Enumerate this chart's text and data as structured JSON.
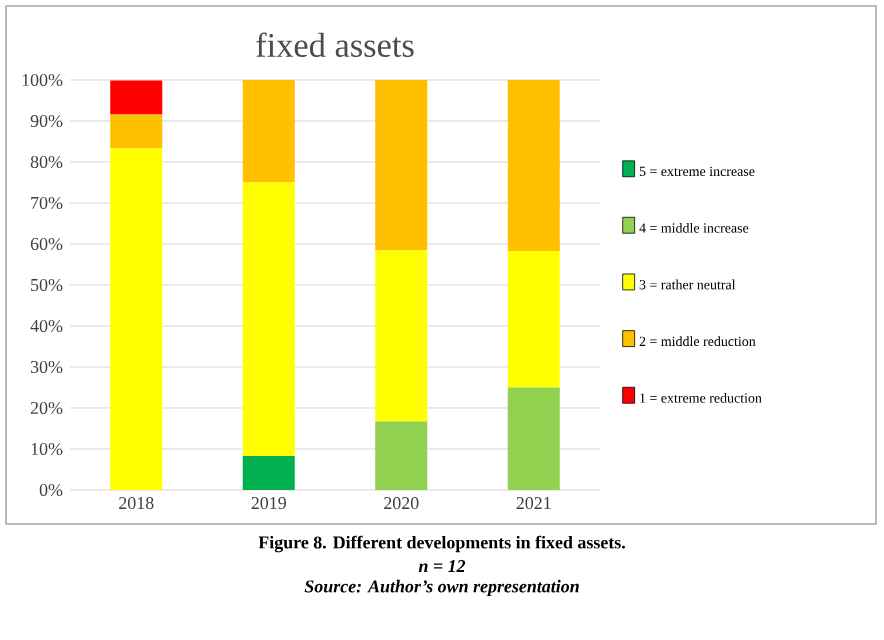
{
  "chart_data": {
    "type": "bar",
    "title": "fixed assets",
    "stacked": true,
    "categories": [
      "2018",
      "2019",
      "2020",
      "2021"
    ],
    "series": [
      {
        "name": "5 = extreme increase",
        "color": "#00b050",
        "values": [
          0,
          8.3,
          0,
          0
        ]
      },
      {
        "name": "4 = middle increase",
        "color": "#92d050",
        "values": [
          0,
          0,
          16.7,
          25
        ]
      },
      {
        "name": "3 = rather neutral",
        "color": "#ffff00",
        "values": [
          83.3,
          66.7,
          41.7,
          33.3
        ]
      },
      {
        "name": "2 = middle reduction",
        "color": "#ffc000",
        "values": [
          8.3,
          25,
          41.6,
          41.7
        ]
      },
      {
        "name": "1 = extreme reduction",
        "color": "#ff0000",
        "values": [
          8.3,
          0,
          0,
          0
        ]
      }
    ],
    "ylim": [
      0,
      100
    ],
    "yticks": [
      {
        "value": 0,
        "label": "0%"
      },
      {
        "value": 10,
        "label": "10%"
      },
      {
        "value": 20,
        "label": "20%"
      },
      {
        "value": 30,
        "label": "30%"
      },
      {
        "value": 40,
        "label": "40%"
      },
      {
        "value": 50,
        "label": "50%"
      },
      {
        "value": 60,
        "label": "60%"
      },
      {
        "value": 70,
        "label": "70%"
      },
      {
        "value": 80,
        "label": "80%"
      },
      {
        "value": 90,
        "label": "90%"
      },
      {
        "value": 100,
        "label": "100%"
      }
    ],
    "grid": "y",
    "legend": "right",
    "annotations": [
      "Figure 8. Different developments in fixed assets.",
      "n = 12",
      "Source: Author’s own representation"
    ]
  }
}
